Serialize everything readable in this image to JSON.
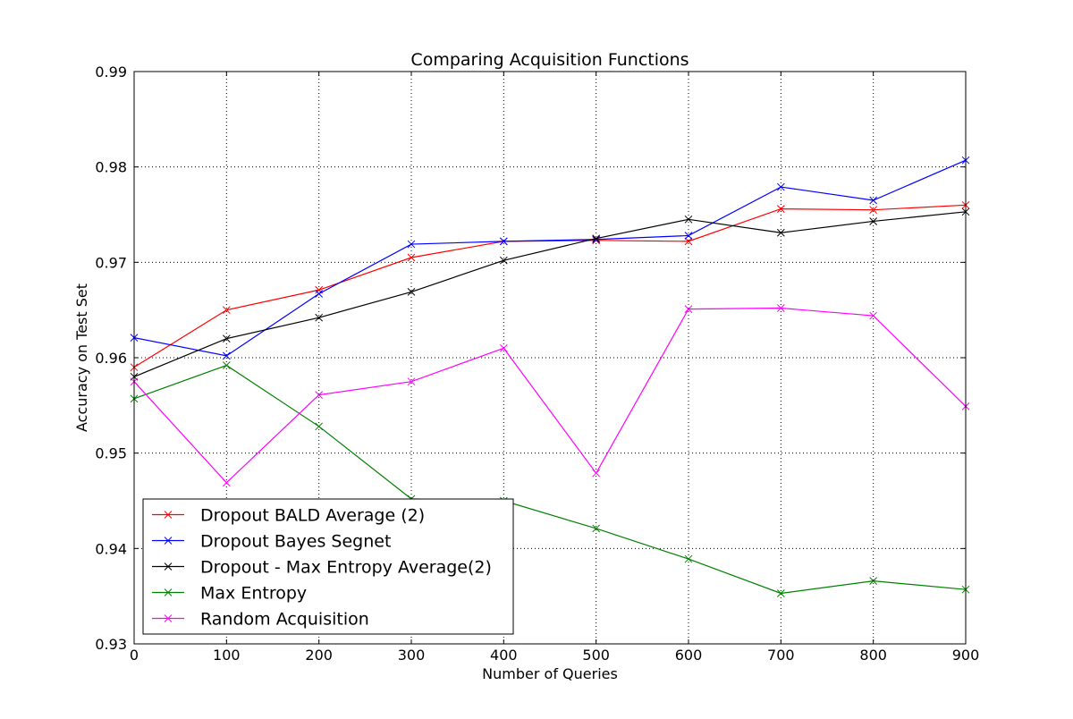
{
  "chart_data": {
    "type": "line",
    "title": "Comparing Acquisition Functions",
    "xlabel": "Number of Queries",
    "ylabel": "Accuracy on Test Set",
    "xlim": [
      0,
      900
    ],
    "ylim": [
      0.93,
      0.99
    ],
    "x": [
      0,
      100,
      200,
      300,
      400,
      500,
      600,
      700,
      800,
      900
    ],
    "xticks": [
      "0",
      "100",
      "200",
      "300",
      "400",
      "500",
      "600",
      "700",
      "800",
      "900"
    ],
    "yticks": [
      "0.93",
      "0.94",
      "0.95",
      "0.96",
      "0.97",
      "0.98",
      "0.99"
    ],
    "grid": true,
    "legend_position": "lower-left",
    "marker": "x",
    "series": [
      {
        "name": "Dropout BALD Average (2)",
        "color": "#ff0000",
        "values": [
          0.959,
          0.965,
          0.9671,
          0.9705,
          0.9722,
          0.9723,
          0.9722,
          0.9756,
          0.9755,
          0.976
        ]
      },
      {
        "name": "Dropout Bayes Segnet",
        "color": "#0000ff",
        "values": [
          0.9621,
          0.9602,
          0.9667,
          0.9719,
          0.9722,
          0.9724,
          0.9728,
          0.9779,
          0.9765,
          0.9807
        ]
      },
      {
        "name": "Dropout - Max Entropy Average(2)",
        "color": "#000000",
        "values": [
          0.958,
          0.962,
          0.9642,
          0.9669,
          0.9702,
          0.9725,
          0.9745,
          0.9731,
          0.9743,
          0.9753
        ]
      },
      {
        "name": "Max Entropy",
        "color": "#008000",
        "values": [
          0.9557,
          0.9592,
          0.9528,
          0.9452,
          0.945,
          0.9421,
          0.9389,
          0.9353,
          0.9366,
          0.9357
        ]
      },
      {
        "name": "Random Acquisition",
        "color": "#ff00ff",
        "values": [
          0.9575,
          0.9469,
          0.9561,
          0.9575,
          0.961,
          0.9479,
          0.9651,
          0.9652,
          0.9644,
          0.9549
        ]
      }
    ]
  }
}
